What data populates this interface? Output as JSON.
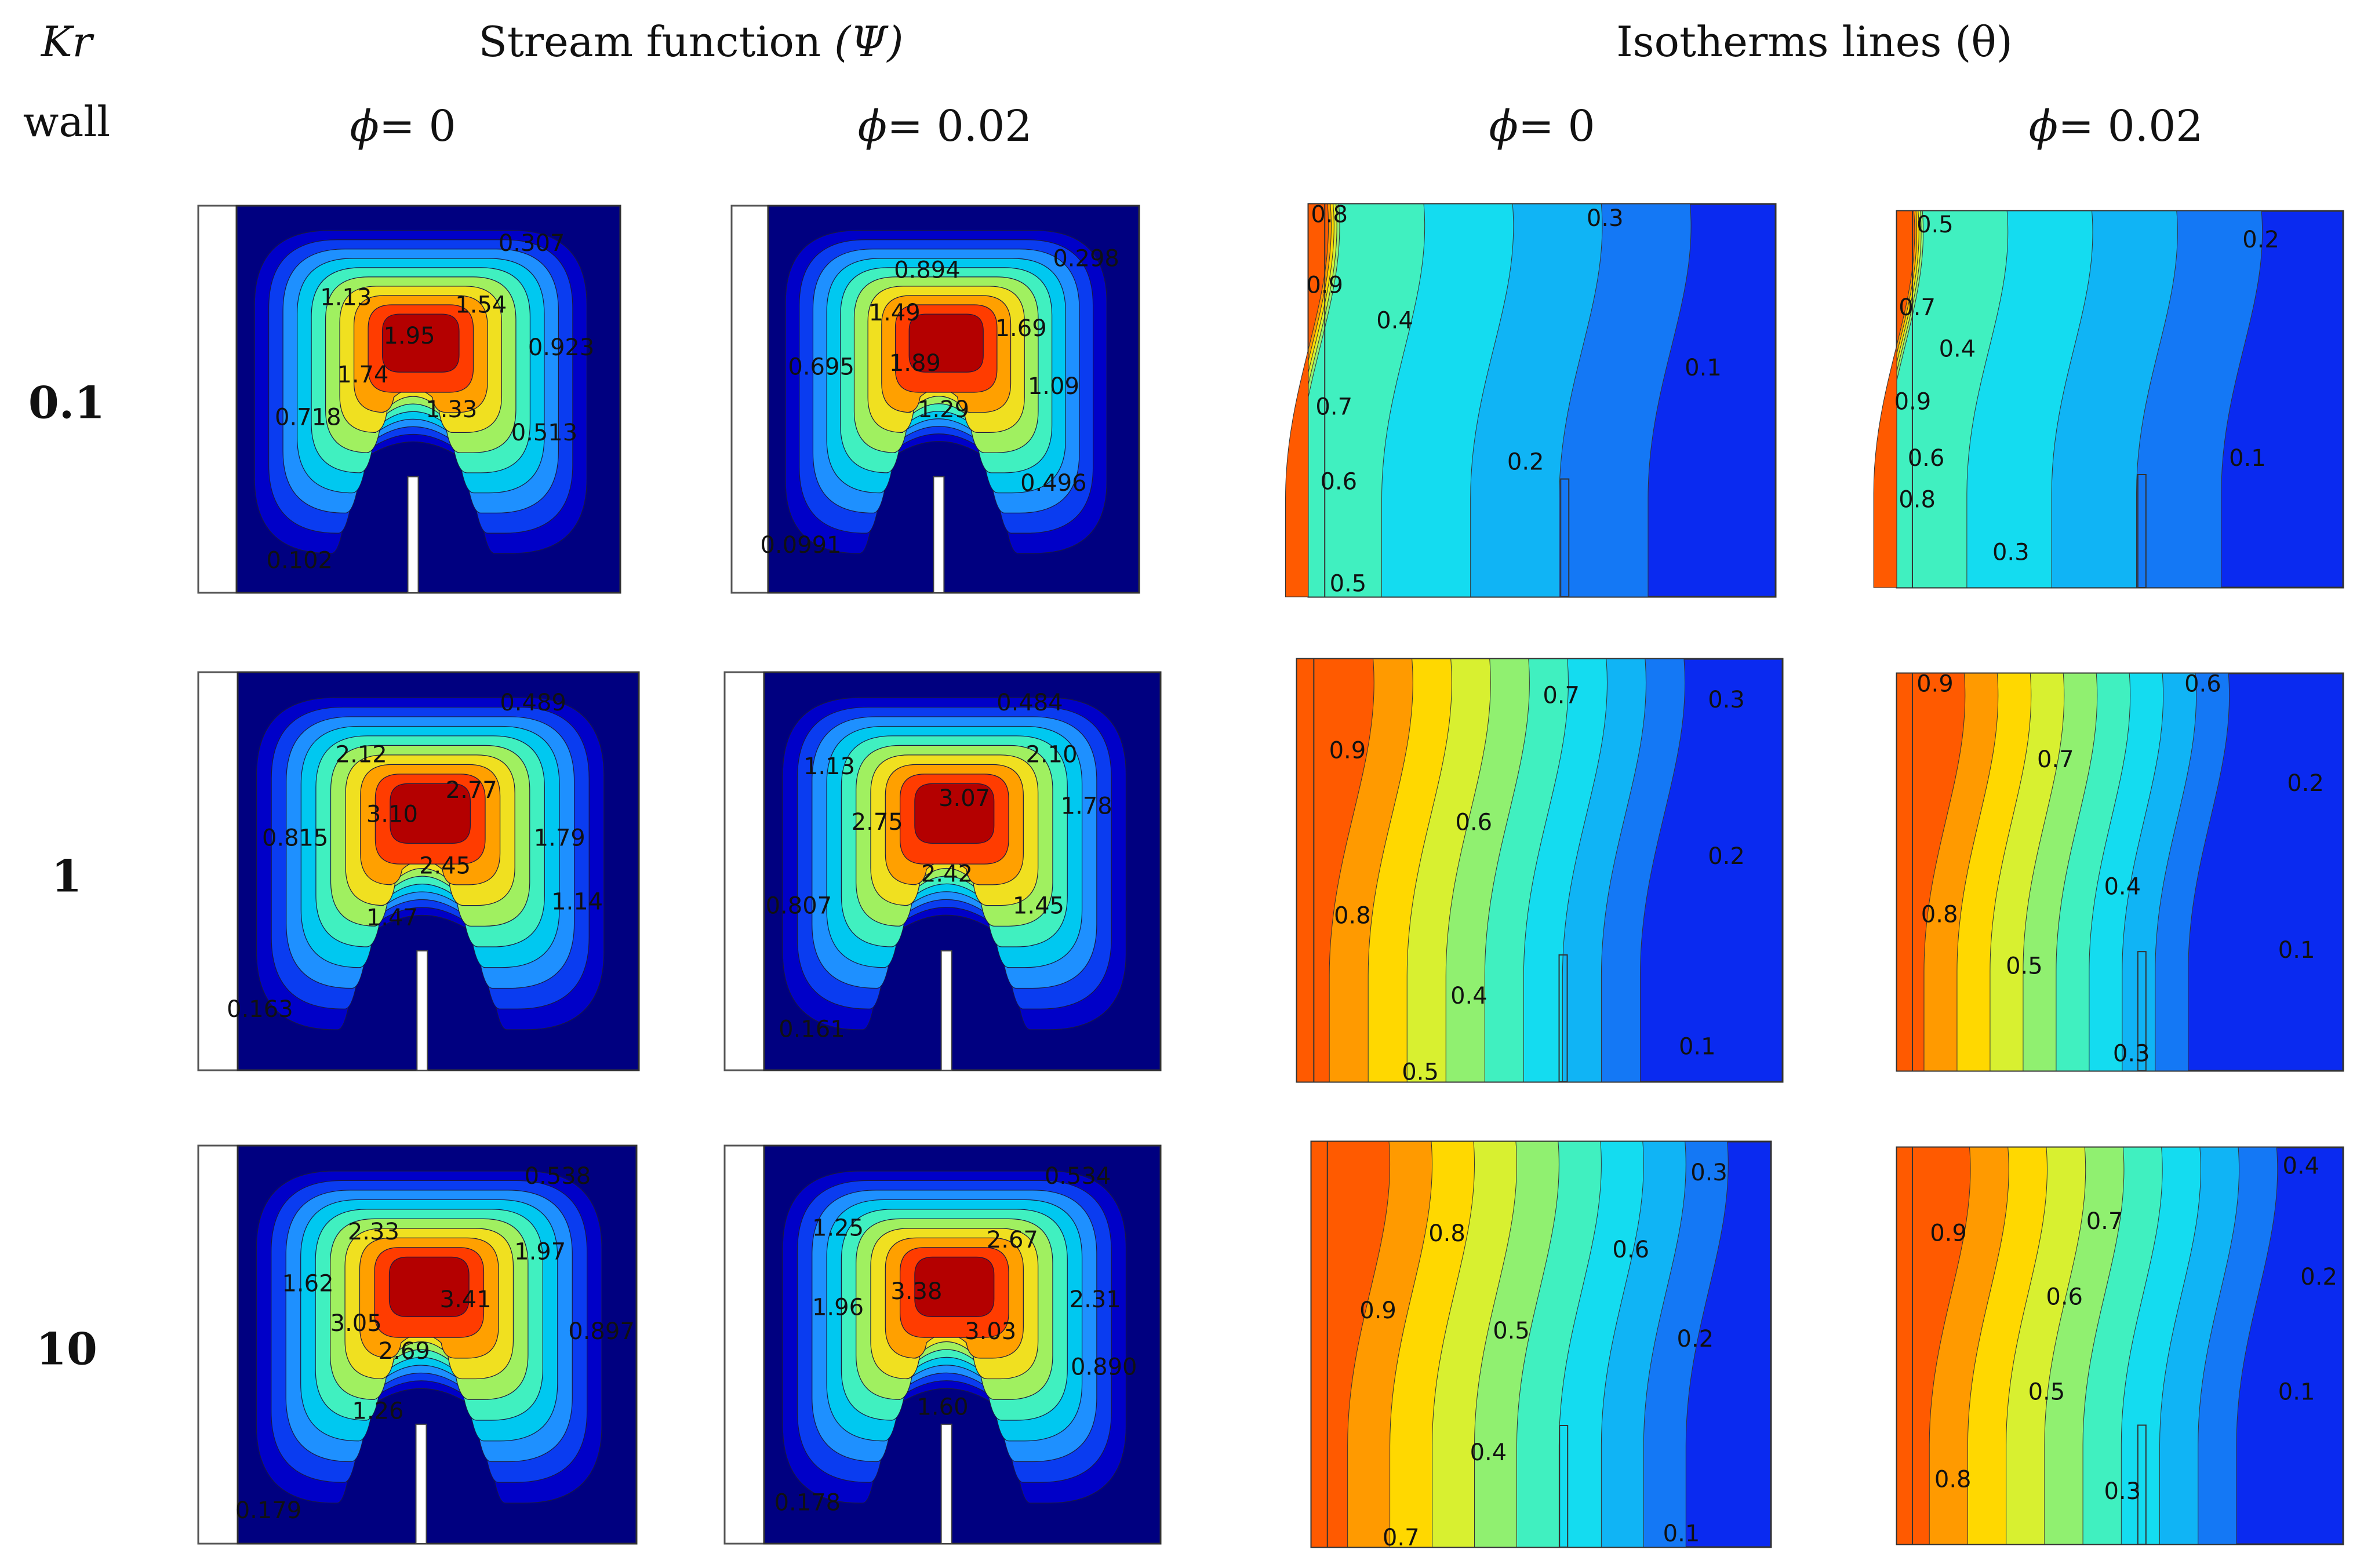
{
  "header": {
    "kr_label": "Kr",
    "wall_label": "wall",
    "stream_title_text": "Stream function",
    "stream_symbol": "(Ψ)",
    "iso_title_text": "Isotherms lines",
    "iso_symbol": "(θ)",
    "phi_symbol": "ϕ",
    "phi_labels": [
      "= 0",
      "= 0.02",
      "= 0",
      "= 0.02"
    ]
  },
  "rows": [
    {
      "kr": "0.1",
      "stream": [
        {
          "phi": "0",
          "labels": [
            "0.307",
            "1.13",
            "1.54",
            "1.95",
            "0.923",
            "1.74",
            "0.718",
            "1.33",
            "0.513",
            "0.102"
          ]
        },
        {
          "phi": "0.02",
          "labels": [
            "0.298",
            "0.894",
            "1.49",
            "1.69",
            "0.695",
            "1.89",
            "1.09",
            "1.29",
            "0.496",
            "0.0991"
          ]
        }
      ],
      "iso": [
        {
          "phi": "0",
          "labels": [
            "0.8",
            "0.3",
            "0.9",
            "0.4",
            "0.1",
            "0.7",
            "0.2",
            "0.6",
            "0.5"
          ]
        },
        {
          "phi": "0.02",
          "labels": [
            "0.5",
            "0.2",
            "0.7",
            "0.4",
            "0.9",
            "0.1",
            "0.6",
            "0.8",
            "0.3"
          ]
        }
      ]
    },
    {
      "kr": "1",
      "stream": [
        {
          "phi": "0",
          "labels": [
            "0.489",
            "2.12",
            "2.77",
            "3.10",
            "0.815",
            "1.79",
            "2.45",
            "1.14",
            "1.47",
            "0.163"
          ]
        },
        {
          "phi": "0.02",
          "labels": [
            "0.484",
            "1.13",
            "2.10",
            "3.07",
            "2.75",
            "1.78",
            "2.42",
            "0.807",
            "1.45",
            "0.161"
          ]
        }
      ],
      "iso": [
        {
          "phi": "0",
          "labels": [
            "0.7",
            "0.3",
            "0.9",
            "0.6",
            "0.2",
            "0.8",
            "0.4",
            "0.1",
            "0.5"
          ]
        },
        {
          "phi": "0.02",
          "labels": [
            "0.9",
            "0.6",
            "0.7",
            "0.2",
            "0.4",
            "0.8",
            "0.5",
            "0.1",
            "0.3"
          ]
        }
      ]
    },
    {
      "kr": "10",
      "stream": [
        {
          "phi": "0",
          "labels": [
            "0.538",
            "2.33",
            "1.97",
            "1.62",
            "3.41",
            "3.05",
            "0.897",
            "2.69",
            "1.26",
            "0.179"
          ]
        },
        {
          "phi": "0.02",
          "labels": [
            "0.534",
            "1.25",
            "2.67",
            "1.96",
            "3.38",
            "2.31",
            "3.03",
            "0.890",
            "1.60",
            "0.178"
          ]
        }
      ],
      "iso": [
        {
          "phi": "0",
          "labels": [
            "0.3",
            "0.8",
            "0.6",
            "0.9",
            "0.5",
            "0.2",
            "0.4",
            "0.7",
            "0.1"
          ]
        },
        {
          "phi": "0.02",
          "labels": [
            "0.4",
            "0.9",
            "0.7",
            "0.2",
            "0.6",
            "0.5",
            "0.1",
            "0.8",
            "0.3"
          ]
        }
      ]
    }
  ],
  "colors": {
    "stream_scale": [
      "#000080",
      "#0000c8",
      "#0a3cf0",
      "#1e90ff",
      "#00c8f0",
      "#40f0c0",
      "#a0f060",
      "#f0e020",
      "#ffa000",
      "#ff3c00",
      "#b40000"
    ],
    "iso_scale": [
      "#0a2af0",
      "#1478f5",
      "#10b4f5",
      "#14dcf0",
      "#40f0c0",
      "#90f070",
      "#d8f030",
      "#ffd800",
      "#ff9a00",
      "#ff5a00"
    ]
  }
}
